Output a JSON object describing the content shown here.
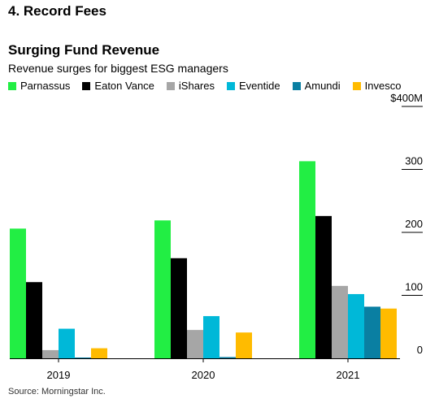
{
  "section_heading": "4. Record Fees",
  "source": "Source: Morningstar Inc.",
  "chart_data": {
    "type": "bar",
    "title": "Surging Fund Revenue",
    "subtitle": "Revenue surges for biggest ESG managers",
    "categories": [
      "2019",
      "2020",
      "2021"
    ],
    "series": [
      {
        "name": "Parnassus",
        "color": "#22ee44",
        "values": [
          206,
          219,
          313
        ]
      },
      {
        "name": "Eaton Vance",
        "color": "#000000",
        "values": [
          121,
          159,
          226
        ]
      },
      {
        "name": "iShares",
        "color": "#a6a6a6",
        "values": [
          13,
          45,
          115
        ]
      },
      {
        "name": "Eventide",
        "color": "#00b8d8",
        "values": [
          47,
          67,
          102
        ]
      },
      {
        "name": "Amundi",
        "color": "#0a7fa2",
        "values": [
          1,
          2,
          82
        ]
      },
      {
        "name": "Invesco",
        "color": "#ffbb00",
        "values": [
          16,
          41,
          79
        ]
      }
    ],
    "ylim": [
      0,
      400
    ],
    "yticks": [
      {
        "value": 0,
        "label": "0"
      },
      {
        "value": 100,
        "label": "100"
      },
      {
        "value": 200,
        "label": "200"
      },
      {
        "value": 300,
        "label": "300"
      },
      {
        "value": 400,
        "label": "$400M"
      }
    ],
    "axis_position": "right",
    "legend_position": "top-left",
    "grid": false
  }
}
